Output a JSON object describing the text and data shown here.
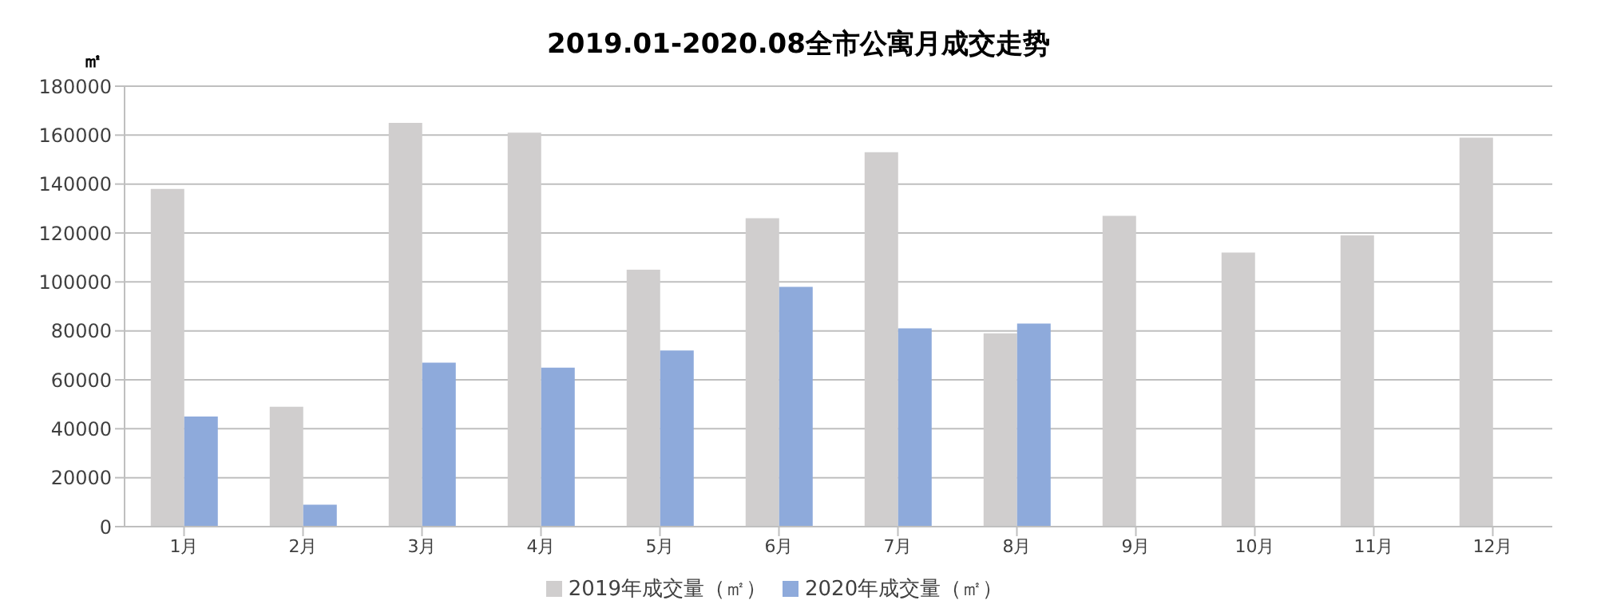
{
  "chart_data": {
    "type": "bar",
    "title": "2019.01-2020.08全市公寓月成交走势",
    "ylabel": "㎡",
    "categories": [
      "1月",
      "2月",
      "3月",
      "4月",
      "5月",
      "6月",
      "7月",
      "8月",
      "9月",
      "10月",
      "11月",
      "12月"
    ],
    "series": [
      {
        "name": "2019年成交量（㎡）",
        "color": "#d0cece",
        "values": [
          138000,
          49000,
          165000,
          161000,
          105000,
          126000,
          153000,
          79000,
          127000,
          112000,
          119000,
          159000
        ]
      },
      {
        "name": "2020年成交量（㎡）",
        "color": "#8eaadb",
        "values": [
          45000,
          9000,
          67000,
          65000,
          72000,
          98000,
          81000,
          83000,
          null,
          null,
          null,
          null
        ]
      }
    ],
    "ylim": [
      0,
      180000
    ],
    "yticks": [
      0,
      20000,
      40000,
      60000,
      80000,
      100000,
      120000,
      140000,
      160000,
      180000
    ],
    "grid": "y",
    "legend": "bottom"
  }
}
